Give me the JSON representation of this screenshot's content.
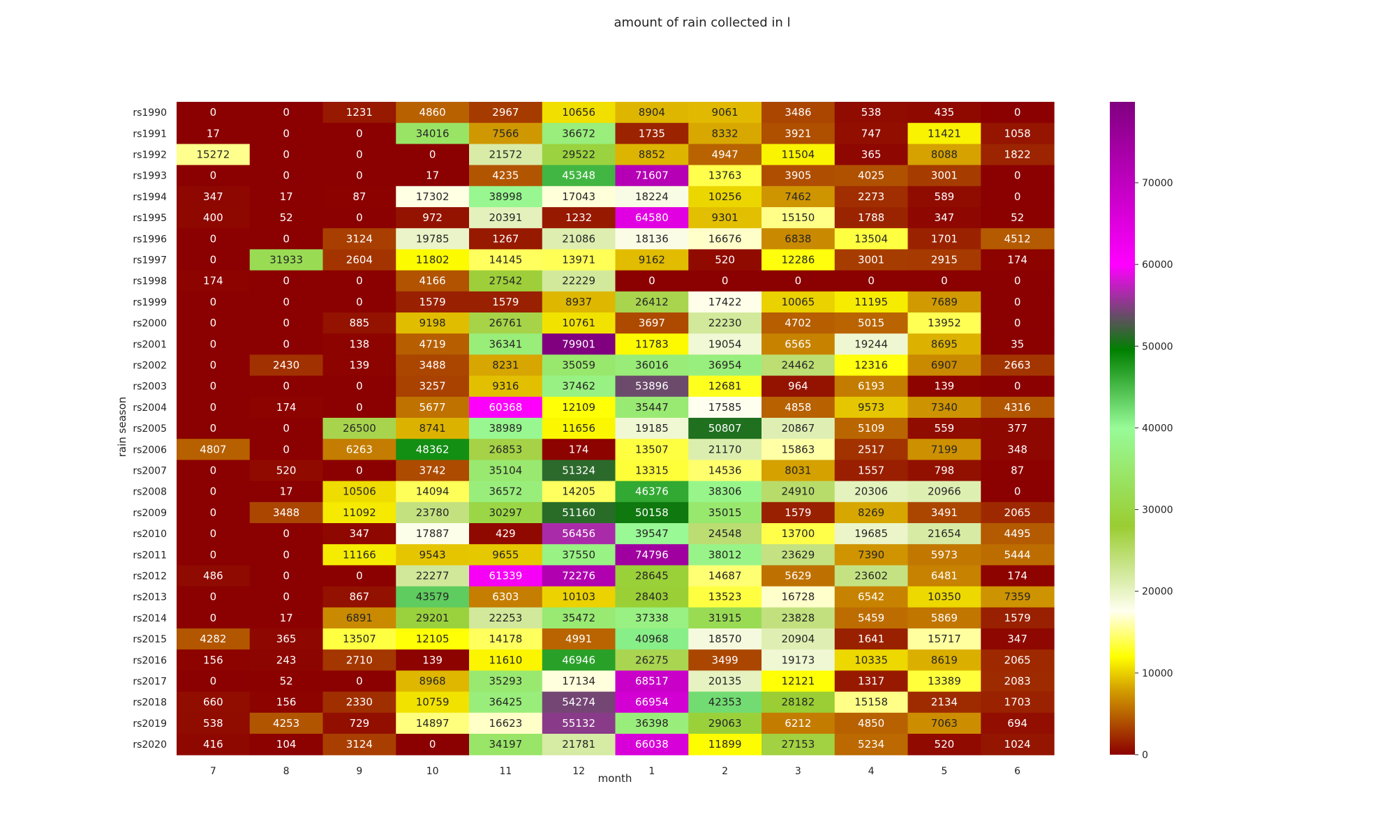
{
  "chart_data": {
    "type": "heatmap",
    "title": "amount of rain collected in l",
    "xlabel": "month",
    "ylabel": "rain season",
    "x_categories": [
      "7",
      "8",
      "9",
      "10",
      "11",
      "12",
      "1",
      "2",
      "3",
      "4",
      "5",
      "6"
    ],
    "y_categories": [
      "rs1990",
      "rs1991",
      "rs1992",
      "rs1993",
      "rs1994",
      "rs1995",
      "rs1996",
      "rs1997",
      "rs1998",
      "rs1999",
      "rs2000",
      "rs2001",
      "rs2002",
      "rs2003",
      "rs2004",
      "rs2005",
      "rs2006",
      "rs2007",
      "rs2008",
      "rs2009",
      "rs2010",
      "rs2011",
      "rs2012",
      "rs2013",
      "rs2014",
      "rs2015",
      "rs2016",
      "rs2017",
      "rs2018",
      "rs2019",
      "rs2020"
    ],
    "values": [
      [
        0,
        0,
        1231,
        4860,
        2967,
        10656,
        8904,
        9061,
        3486,
        538,
        435,
        0
      ],
      [
        17,
        0,
        0,
        34016,
        7566,
        36672,
        1735,
        8332,
        3921,
        747,
        11421,
        1058
      ],
      [
        15272,
        0,
        0,
        0,
        21572,
        29522,
        8852,
        4947,
        11504,
        365,
        8088,
        1822
      ],
      [
        0,
        0,
        0,
        17,
        4235,
        45348,
        71607,
        13763,
        3905,
        4025,
        3001,
        0
      ],
      [
        347,
        17,
        87,
        17302,
        38998,
        17043,
        18224,
        10256,
        7462,
        2273,
        589,
        0
      ],
      [
        400,
        52,
        0,
        972,
        20391,
        1232,
        64580,
        9301,
        15150,
        1788,
        347,
        52
      ],
      [
        0,
        0,
        3124,
        19785,
        1267,
        21086,
        18136,
        16676,
        6838,
        13504,
        1701,
        4512
      ],
      [
        0,
        31933,
        2604,
        11802,
        14145,
        13971,
        9162,
        520,
        12286,
        3001,
        2915,
        174
      ],
      [
        174,
        0,
        0,
        4166,
        27542,
        22229,
        0,
        0,
        0,
        0,
        0,
        0
      ],
      [
        0,
        0,
        0,
        1579,
        1579,
        8937,
        26412,
        17422,
        10065,
        11195,
        7689,
        0
      ],
      [
        0,
        0,
        885,
        9198,
        26761,
        10761,
        3697,
        22230,
        4702,
        5015,
        13952,
        0
      ],
      [
        0,
        0,
        138,
        4719,
        36341,
        79901,
        11783,
        19054,
        6565,
        19244,
        8695,
        35
      ],
      [
        0,
        2430,
        139,
        3488,
        8231,
        35059,
        36016,
        36954,
        24462,
        12316,
        6907,
        2663
      ],
      [
        0,
        0,
        0,
        3257,
        9316,
        37462,
        53896,
        12681,
        964,
        6193,
        139,
        0
      ],
      [
        0,
        174,
        0,
        5677,
        60368,
        12109,
        35447,
        17585,
        4858,
        9573,
        7340,
        4316
      ],
      [
        0,
        0,
        26500,
        8741,
        38989,
        11656,
        19185,
        50807,
        20867,
        5109,
        559,
        377
      ],
      [
        4807,
        0,
        6263,
        48362,
        26853,
        174,
        13507,
        21170,
        15863,
        2517,
        7199,
        348
      ],
      [
        0,
        520,
        0,
        3742,
        35104,
        51324,
        13315,
        14536,
        8031,
        1557,
        798,
        87
      ],
      [
        0,
        17,
        10506,
        14094,
        36572,
        14205,
        46376,
        38306,
        24910,
        20306,
        20966,
        0
      ],
      [
        0,
        3488,
        11092,
        23780,
        30297,
        51160,
        50158,
        35015,
        1579,
        8269,
        3491,
        2065
      ],
      [
        0,
        0,
        347,
        17887,
        429,
        56456,
        39547,
        24548,
        13700,
        19685,
        21654,
        4495
      ],
      [
        0,
        0,
        11166,
        9543,
        9655,
        37550,
        74796,
        38012,
        23629,
        7390,
        5973,
        5444
      ],
      [
        486,
        0,
        0,
        22277,
        61339,
        72276,
        28645,
        14687,
        5629,
        23602,
        6481,
        174
      ],
      [
        0,
        0,
        867,
        43579,
        6303,
        10103,
        28403,
        13523,
        16728,
        6542,
        10350,
        7359
      ],
      [
        0,
        17,
        6891,
        29201,
        22253,
        35472,
        37338,
        31915,
        23828,
        5459,
        5869,
        1579
      ],
      [
        4282,
        365,
        13507,
        12105,
        14178,
        4991,
        40968,
        18570,
        20904,
        1641,
        15717,
        347
      ],
      [
        156,
        243,
        2710,
        139,
        11610,
        46946,
        26275,
        3499,
        19173,
        10335,
        8619,
        2065
      ],
      [
        0,
        52,
        0,
        8968,
        35293,
        17134,
        68517,
        20135,
        12121,
        1317,
        13389,
        2083
      ],
      [
        660,
        156,
        2330,
        10759,
        36425,
        54274,
        66954,
        42353,
        28182,
        15158,
        2134,
        1703
      ],
      [
        538,
        4253,
        729,
        14897,
        16623,
        55132,
        36398,
        29063,
        6212,
        4850,
        7063,
        694
      ],
      [
        416,
        104,
        3124,
        0,
        34197,
        21781,
        66038,
        11899,
        27153,
        5234,
        520,
        1024
      ]
    ],
    "colorbar": {
      "vmin": 0,
      "vmax": 79901,
      "ticks": [
        0,
        10000,
        20000,
        30000,
        40000,
        50000,
        60000,
        70000
      ],
      "colormap_stops": [
        {
          "v": 0.0,
          "color": "#8b0000"
        },
        {
          "v": 0.1,
          "color": "#d4a000"
        },
        {
          "v": 0.15,
          "color": "#ffff00"
        },
        {
          "v": 0.22,
          "color": "#fffff0"
        },
        {
          "v": 0.35,
          "color": "#9acd32"
        },
        {
          "v": 0.5,
          "color": "#98fb98"
        },
        {
          "v": 0.62,
          "color": "#008000"
        },
        {
          "v": 0.75,
          "color": "#ff00ff"
        },
        {
          "v": 1.0,
          "color": "#800080"
        }
      ]
    }
  }
}
